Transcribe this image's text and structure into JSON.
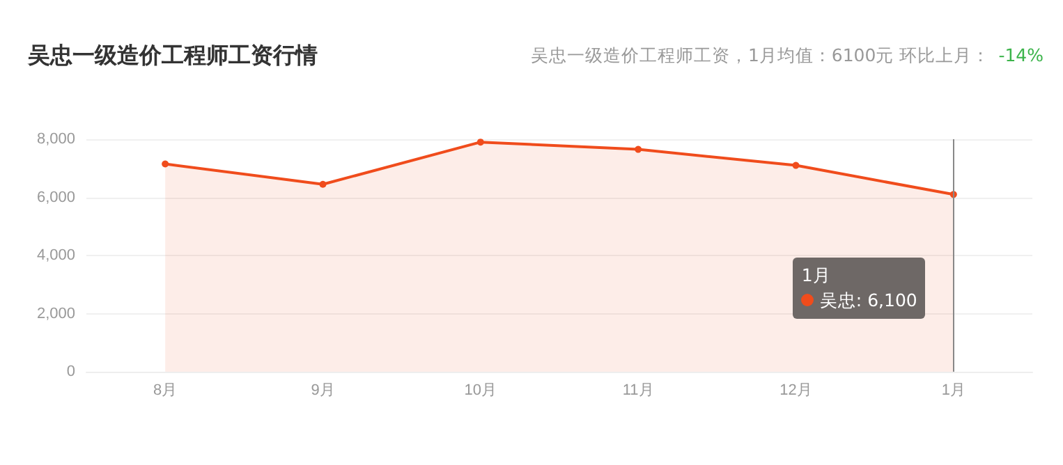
{
  "chart_data": {
    "type": "area",
    "title": "吴忠一级造价工程师工资行情",
    "subtitle": "吴忠一级造价工程师工资，1月均值：6100元 环比上月：",
    "annotations": [
      "-14%",
      "1月",
      "吴忠: 6,100"
    ],
    "categories": [
      "8月",
      "9月",
      "10月",
      "11月",
      "12月",
      "1月"
    ],
    "series": [
      {
        "color": "#f04c1c",
        "values": [
          7150,
          6450,
          7900,
          7650,
          7100,
          6100
        ]
      }
    ],
    "ref_lines": [
      {
        "axis": "x",
        "value": "1月",
        "color": "#888888"
      }
    ],
    "ylim": [
      0,
      8000
    ],
    "yticks": [
      0,
      {
        "value": 2000,
        "label": "2,000"
      },
      {
        "value": 4000,
        "label": "4,000"
      },
      {
        "value": 6000,
        "label": "6,000"
      },
      {
        "value": 8000,
        "label": "8,000"
      }
    ],
    "grid": "y",
    "marker": "circle",
    "line_style": "solid"
  }
}
